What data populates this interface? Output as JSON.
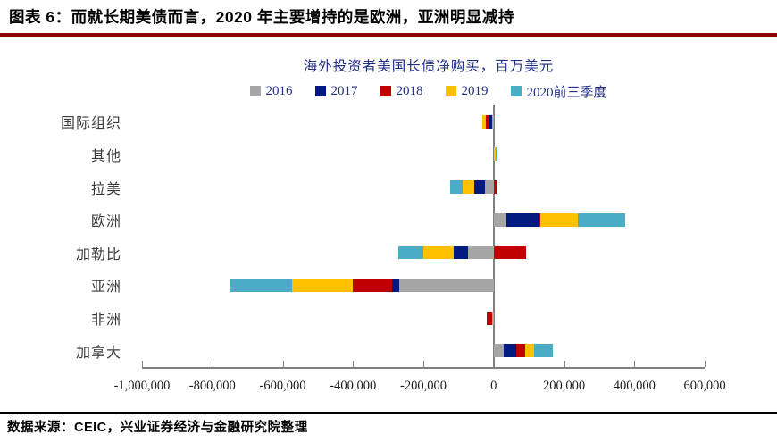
{
  "header": {
    "title": "图表 6：而就长期美债而言，2020 年主要增持的是欧洲，亚洲明显减持"
  },
  "footer": {
    "source": "数据来源：CEIC，兴业证券经济与金融研究院整理"
  },
  "colors": {
    "header_rule": "#8b0000",
    "chart_text": "#222f87",
    "axis": "#808080"
  },
  "chart_data": {
    "type": "bar",
    "orientation": "horizontal",
    "stacked": true,
    "grid": false,
    "legend_position": "top",
    "title": "海外投资者美国长债净购买，百万美元",
    "categories": [
      "国际组织",
      "其他",
      "拉美",
      "欧洲",
      "加勒比",
      "亚洲",
      "非洲",
      "加拿大"
    ],
    "series": [
      {
        "name": "2016",
        "color": "#a6a6a6",
        "values": [
          -5000,
          0,
          -25000,
          36000,
          -74000,
          -268000,
          -4000,
          29000
        ]
      },
      {
        "name": "2017",
        "color": "#001a80",
        "values": [
          -8000,
          0,
          -30000,
          93000,
          -40000,
          -21000,
          0,
          35000
        ]
      },
      {
        "name": "2018",
        "color": "#c00000",
        "values": [
          -10000,
          0,
          8000,
          4000,
          93000,
          -111000,
          -15000,
          25000
        ]
      },
      {
        "name": "2019",
        "color": "#ffc000",
        "values": [
          -10000,
          5000,
          -34000,
          106000,
          -87000,
          -173000,
          0,
          27000
        ]
      },
      {
        "name": "2020前三季度",
        "color": "#4bacc6",
        "values": [
          0,
          6000,
          -34000,
          135000,
          -69000,
          -175000,
          0,
          52000
        ]
      }
    ],
    "xlim": [
      -1000000,
      600000
    ],
    "x_ticks": [
      -1000000,
      -800000,
      -600000,
      -400000,
      -200000,
      0,
      200000,
      400000,
      600000
    ],
    "x_tick_labels": [
      "-1,000,000",
      "-800,000",
      "-600,000",
      "-400,000",
      "-200,000",
      "0",
      "200,000",
      "400,000",
      "600,000"
    ]
  }
}
